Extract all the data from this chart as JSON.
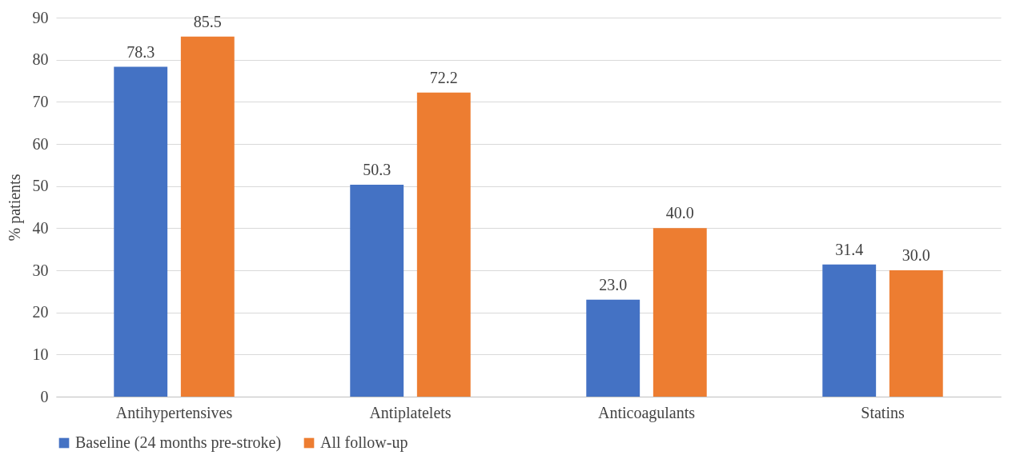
{
  "chart_data": {
    "type": "bar",
    "categories": [
      "Antihypertensives",
      "Antiplatelets",
      "Anticoagulants",
      "Statins"
    ],
    "ylabel": "% patients",
    "series": [
      {
        "name": "Baseline (24 months pre-stroke)",
        "color": "#4472c4",
        "values": [
          78.3,
          50.3,
          23.0,
          31.4
        ],
        "value_labels": [
          "78.3",
          "50.3",
          "23.0",
          "31.4"
        ]
      },
      {
        "name": "All follow-up",
        "color": "#ed7d31",
        "values": [
          85.5,
          72.2,
          40.0,
          30.0
        ],
        "value_labels": [
          "85.5",
          "72.2",
          "40.0",
          "30.0"
        ]
      }
    ],
    "ylim": [
      0,
      90
    ],
    "yticks": [
      0,
      10,
      20,
      30,
      40,
      50,
      60,
      70,
      80,
      90
    ],
    "grid": "y",
    "legend": "bottom"
  }
}
